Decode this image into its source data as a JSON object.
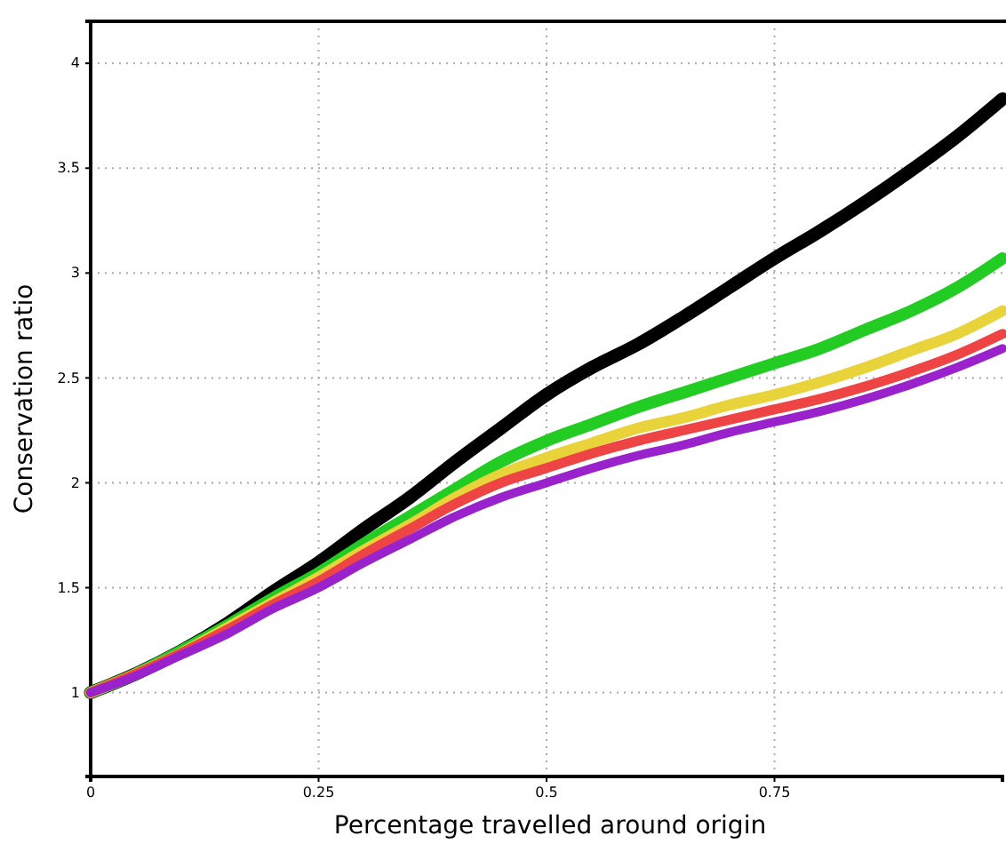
{
  "chart_data": {
    "type": "line",
    "xlabel": "Percentage travelled around origin",
    "ylabel": "Conservation ratio",
    "x": [
      0,
      0.05,
      0.1,
      0.15,
      0.2,
      0.25,
      0.3,
      0.35,
      0.4,
      0.45,
      0.5,
      0.55,
      0.6,
      0.65,
      0.7,
      0.75,
      0.8,
      0.85,
      0.9,
      0.95,
      1
    ],
    "series": [
      {
        "color": "#000000",
        "values": [
          1,
          1.09,
          1.2,
          1.33,
          1.48,
          1.62,
          1.78,
          1.93,
          2.1,
          2.26,
          2.42,
          2.55,
          2.66,
          2.79,
          2.93,
          3.07,
          3.2,
          3.34,
          3.49,
          3.65,
          3.83
        ]
      },
      {
        "color": "#22cc22",
        "values": [
          1,
          1.09,
          1.2,
          1.32,
          1.45,
          1.57,
          1.71,
          1.84,
          1.97,
          2.1,
          2.2,
          2.28,
          2.36,
          2.43,
          2.5,
          2.57,
          2.64,
          2.73,
          2.82,
          2.93,
          3.07
        ]
      },
      {
        "color": "#e8d43a",
        "values": [
          1,
          1.09,
          1.19,
          1.31,
          1.43,
          1.55,
          1.68,
          1.8,
          1.93,
          2.04,
          2.12,
          2.19,
          2.26,
          2.31,
          2.37,
          2.42,
          2.48,
          2.55,
          2.63,
          2.71,
          2.82
        ]
      },
      {
        "color": "#ee4444",
        "values": [
          1,
          1.09,
          1.19,
          1.3,
          1.42,
          1.53,
          1.66,
          1.78,
          1.9,
          2.0,
          2.07,
          2.14,
          2.2,
          2.25,
          2.3,
          2.35,
          2.4,
          2.46,
          2.53,
          2.61,
          2.71
        ]
      },
      {
        "color": "#9922cc",
        "values": [
          1,
          1.08,
          1.18,
          1.28,
          1.4,
          1.5,
          1.62,
          1.73,
          1.84,
          1.93,
          2.0,
          2.07,
          2.13,
          2.18,
          2.24,
          2.29,
          2.34,
          2.4,
          2.47,
          2.55,
          2.64
        ]
      }
    ],
    "xlim": [
      0,
      1
    ],
    "xticks": [
      0,
      0.25,
      0.5,
      0.75
    ],
    "ylim": [
      0.6,
      4.2
    ],
    "yticks": [
      1,
      1.5,
      2,
      2.5,
      3,
      3.5,
      4
    ],
    "grid": true,
    "line_style": "solid"
  }
}
